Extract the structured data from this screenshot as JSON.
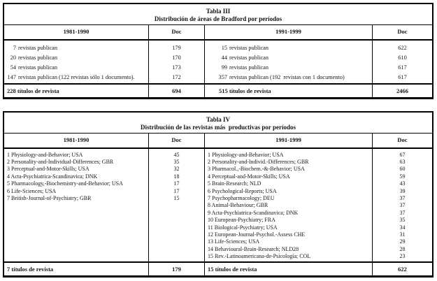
{
  "page": {
    "background": "#ffffff",
    "text_color": "#141414",
    "border_color": "#000000"
  },
  "tabla3": {
    "title": "Tabla III",
    "subtitle": "Distribución de áreas de Bradford por períodos",
    "columns": [
      "1981-1990",
      "Doc",
      "1991-1999",
      "Doc"
    ],
    "rows": [
      {
        "left_num": "7",
        "left_text": "revistas publican",
        "left_doc": "179",
        "right_num": "15",
        "right_text": "revistas publican",
        "right_doc": "622"
      },
      {
        "left_num": "20",
        "left_text": "revistas publican",
        "left_doc": "170",
        "right_num": "44",
        "right_text": "revistas publican",
        "right_doc": "610"
      },
      {
        "left_num": "54",
        "left_text": "revistas publican",
        "left_doc": "173",
        "right_num": "99",
        "right_text": "revistas publican",
        "right_doc": "617"
      },
      {
        "left_num": "147",
        "left_text": "revistas publican (122 revistas sólo 1 documento).",
        "left_doc": "172",
        "right_num": "357",
        "right_text": "revistas publican (192  revistas con 1 documento)",
        "right_doc": "617"
      }
    ],
    "footer": {
      "left": "228 títulos de revista",
      "left_doc": "694",
      "right": "515 títulos de revista",
      "right_doc": "2466"
    }
  },
  "tabla4": {
    "title": "Tabla IV",
    "subtitle": "Distribución de las revistas más  productivas por períodos",
    "columns": [
      "1981-1990",
      "Doc",
      "1991-1999",
      "Doc"
    ],
    "left_rows": [
      {
        "label": "1 Physiology-and-Behavior; USA",
        "doc": "45"
      },
      {
        "label": "2 Personality-and-Individual-Differences; GBR",
        "doc": "35"
      },
      {
        "label": "3 Perceptual-and-Motor-Skills; USA",
        "doc": "32"
      },
      {
        "label": "4 Acta-Psychiatrica-Scandinavica; DNK",
        "doc": "18"
      },
      {
        "label": "5 Pharmacology,-Biochemistry-and-Behavior; USA",
        "doc": "17"
      },
      {
        "label": "6 Life-Sciences; USA",
        "doc": "17"
      },
      {
        "label": "7 British-Journal-of-Psychiatry; GBR",
        "doc": "15"
      }
    ],
    "right_rows": [
      {
        "label": "1 Physiology-and-Behavior; USA",
        "doc": "67"
      },
      {
        "label": "2 Personality-and-Individ.-Differences; GBR",
        "doc": "63"
      },
      {
        "label": "3 Pharmacol.,-Biochem.-&-Behavior; USA",
        "doc": "60"
      },
      {
        "label": "4 Perceptual-and-Motor-Skills; USA",
        "doc": "59"
      },
      {
        "label": "5 Brain-Research; NLD",
        "doc": "43"
      },
      {
        "label": "6 Psychological-Reports; USA",
        "doc": "39"
      },
      {
        "label": "7 Psychopharmacology; DEU",
        "doc": "37"
      },
      {
        "label": "8 Animal-Behaviour; GBR",
        "doc": "37"
      },
      {
        "label": "9 Acta-Psychiatrica-Scandinavica; DNK",
        "doc": "37"
      },
      {
        "label": "10 European-Psychiatry; FRA",
        "doc": "35"
      },
      {
        "label": "11 Biological-Psychiatry; USA",
        "doc": "34"
      },
      {
        "label": "12 European-Journal-Psychol.-Assess CHE",
        "doc": "31"
      },
      {
        "label": "13 Life-Sciences; USA",
        "doc": "29"
      },
      {
        "label": "14 Behavioural-Brain-Research; NLD28",
        "doc": "28"
      },
      {
        "label": "15 Rev.-Latinoamericana-de-Psicología; COL",
        "doc": "23"
      }
    ],
    "footer": {
      "left": "7 títulos de revista",
      "left_doc": "179",
      "right": "15 títulos de revista",
      "right_doc": "622"
    }
  }
}
